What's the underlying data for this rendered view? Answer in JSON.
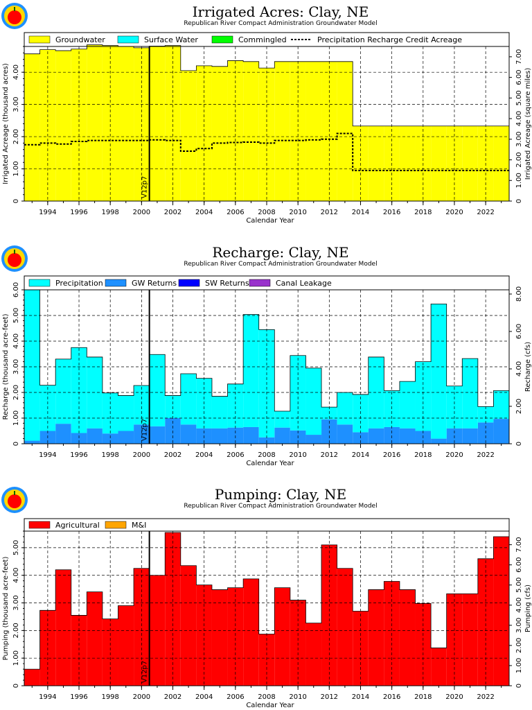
{
  "chart_data": [
    {
      "type": "bar",
      "id": "acres",
      "title": "Irrigated Acres: Clay, NE",
      "subtitle": "Republican River Compact Administration Groundwater Model",
      "xlabel": "Calendar Year",
      "ylabel": "Irrigated Acreage (thousand acres)",
      "y2label": "Irrigated Acreage (square miles)",
      "x_ticks": [
        "1994",
        "1996",
        "1998",
        "2000",
        "2002",
        "2004",
        "2006",
        "2008",
        "2010",
        "2012",
        "2014",
        "2016",
        "2018",
        "2020",
        "2022"
      ],
      "y_ticks": [
        "0",
        "1.00",
        "2.00",
        "3.00",
        "4.00"
      ],
      "y_ticks_values": [
        0,
        1,
        2,
        3,
        4
      ],
      "y2_ticks": [
        "0",
        "1.00",
        "2.00",
        "3.00",
        "4.00",
        "5.00",
        "6.00",
        "7.00"
      ],
      "y2_ticks_values": [
        0,
        1,
        2,
        3,
        4,
        5,
        6,
        7
      ],
      "y2_factor": 1.5625,
      "ylim": [
        0,
        4.8
      ],
      "categories": [
        1993,
        1994,
        1995,
        1996,
        1997,
        1998,
        1999,
        2000,
        2001,
        2002,
        2003,
        2004,
        2005,
        2006,
        2007,
        2008,
        2009,
        2010,
        2011,
        2012,
        2013,
        2014,
        2015,
        2016,
        2017,
        2018,
        2019,
        2020,
        2021,
        2022,
        2023
      ],
      "legend": [
        "Groundwater",
        "Surface Water",
        "Commingled",
        "Precipitation Recharge Credit Acreage"
      ],
      "colors": {
        "Groundwater": "#ffff00",
        "Surface Water": "#00ffff",
        "Commingled": "#00ff00",
        "line": "#000000"
      },
      "series": [
        {
          "name": "Groundwater",
          "values": [
            4.57,
            4.7,
            4.67,
            4.72,
            4.85,
            4.83,
            4.8,
            4.76,
            4.81,
            4.83,
            4.05,
            4.2,
            4.18,
            4.36,
            4.33,
            4.13,
            4.33,
            4.33,
            4.33,
            4.33,
            4.33,
            2.33,
            2.33,
            2.33,
            2.33,
            2.33,
            2.33,
            2.33,
            2.33,
            2.33,
            2.33
          ]
        },
        {
          "name": "Precipitation Recharge Credit Acreage",
          "values": [
            1.75,
            1.8,
            1.77,
            1.85,
            1.88,
            1.88,
            1.88,
            1.88,
            1.9,
            1.88,
            1.55,
            1.63,
            1.8,
            1.82,
            1.83,
            1.8,
            1.88,
            1.88,
            1.9,
            1.92,
            2.1,
            0.95,
            0.95,
            0.95,
            0.95,
            0.95,
            0.95,
            0.95,
            0.95,
            0.95,
            0.95
          ]
        }
      ],
      "marker": {
        "x": 2000.5,
        "label": "V12p7"
      }
    },
    {
      "type": "bar",
      "id": "recharge",
      "title": "Recharge: Clay, NE",
      "subtitle": "Republican River Compact Administration Groundwater Model",
      "xlabel": "Calendar Year",
      "ylabel": "Recharge (thousand acre-feet)",
      "y2label": "Recharge (cfs)",
      "x_ticks": [
        "1994",
        "1996",
        "1998",
        "2000",
        "2002",
        "2004",
        "2006",
        "2008",
        "2010",
        "2012",
        "2014",
        "2016",
        "2018",
        "2020",
        "2022"
      ],
      "y_ticks": [
        "0",
        "1.00",
        "2.00",
        "3.00",
        "4.00",
        "5.00",
        "6.00"
      ],
      "y_ticks_values": [
        0,
        1,
        2,
        3,
        4,
        5,
        6
      ],
      "y2_ticks": [
        "0",
        "2.00",
        "4.00",
        "6.00",
        "8.00"
      ],
      "y2_ticks_values": [
        0,
        2,
        4,
        6,
        8
      ],
      "y2_factor": 0.7296,
      "ylim": [
        0,
        6.0
      ],
      "categories": [
        1993,
        1994,
        1995,
        1996,
        1997,
        1998,
        1999,
        2000,
        2001,
        2002,
        2003,
        2004,
        2005,
        2006,
        2007,
        2008,
        2009,
        2010,
        2011,
        2012,
        2013,
        2014,
        2015,
        2016,
        2017,
        2018,
        2019,
        2020,
        2021,
        2022,
        2023
      ],
      "legend": [
        "Precipitation",
        "GW Returns",
        "SW Returns",
        "Canal Leakage"
      ],
      "colors": {
        "Precipitation": "#00ffff",
        "GW Returns": "#1e90ff",
        "SW Returns": "#0000ff",
        "Canal Leakage": "#9932cc"
      },
      "series": [
        {
          "name": "GW Returns",
          "values": [
            0.12,
            0.5,
            0.78,
            0.42,
            0.6,
            0.4,
            0.5,
            0.75,
            0.68,
            1.0,
            0.75,
            0.6,
            0.6,
            0.63,
            0.65,
            0.25,
            0.63,
            0.52,
            0.35,
            0.95,
            0.75,
            0.45,
            0.6,
            0.65,
            0.6,
            0.5,
            0.2,
            0.6,
            0.6,
            0.83,
            0.97
          ]
        },
        {
          "name": "Precipitation",
          "values": [
            5.88,
            1.78,
            2.52,
            3.33,
            2.78,
            1.58,
            1.38,
            1.52,
            2.8,
            0.88,
            1.98,
            1.95,
            1.25,
            1.7,
            4.39,
            4.2,
            0.64,
            2.92,
            2.6,
            0.48,
            1.25,
            1.47,
            2.78,
            1.42,
            1.83,
            2.7,
            5.25,
            1.65,
            2.72,
            0.62,
            1.1
          ]
        }
      ],
      "marker": {
        "x": 2000.5,
        "label": "V12p7"
      }
    },
    {
      "type": "bar",
      "id": "pumping",
      "title": "Pumping: Clay, NE",
      "subtitle": "Republican River Compact Administration Groundwater Model",
      "xlabel": "Calendar Year",
      "ylabel": "Pumping (thousand acre-feet)",
      "y2label": "Pumping (cfs)",
      "x_ticks": [
        "1994",
        "1996",
        "1998",
        "2000",
        "2002",
        "2004",
        "2006",
        "2008",
        "2010",
        "2012",
        "2014",
        "2016",
        "2018",
        "2020",
        "2022"
      ],
      "y_ticks": [
        "0",
        "1.00",
        "2.00",
        "3.00",
        "4.00",
        "5.00"
      ],
      "y_ticks_values": [
        0,
        1,
        2,
        3,
        4,
        5
      ],
      "y2_ticks": [
        "0",
        "1.00",
        "2.00",
        "3.00",
        "4.00",
        "5.00",
        "6.00",
        "7.00"
      ],
      "y2_ticks_values": [
        0,
        1,
        2,
        3,
        4,
        5,
        6,
        7
      ],
      "y2_factor": 0.7296,
      "ylim": [
        0,
        5.6
      ],
      "categories": [
        1993,
        1994,
        1995,
        1996,
        1997,
        1998,
        1999,
        2000,
        2001,
        2002,
        2003,
        2004,
        2005,
        2006,
        2007,
        2008,
        2009,
        2010,
        2011,
        2012,
        2013,
        2014,
        2015,
        2016,
        2017,
        2018,
        2019,
        2020,
        2021,
        2022,
        2023
      ],
      "legend": [
        "Agricultural",
        "M&I"
      ],
      "colors": {
        "Agricultural": "#ff0000",
        "M&I": "#ffa500"
      },
      "series": [
        {
          "name": "Agricultural",
          "values": [
            0.6,
            2.73,
            4.2,
            2.55,
            3.4,
            2.42,
            2.9,
            4.25,
            4.0,
            5.55,
            4.35,
            3.65,
            3.48,
            3.55,
            3.87,
            1.87,
            3.55,
            3.1,
            2.27,
            5.1,
            4.25,
            2.7,
            3.48,
            3.78,
            3.48,
            2.98,
            1.37,
            3.33,
            3.33,
            4.6,
            5.4
          ]
        }
      ],
      "marker": {
        "x": 2000.5,
        "label": "V12p7"
      }
    }
  ]
}
